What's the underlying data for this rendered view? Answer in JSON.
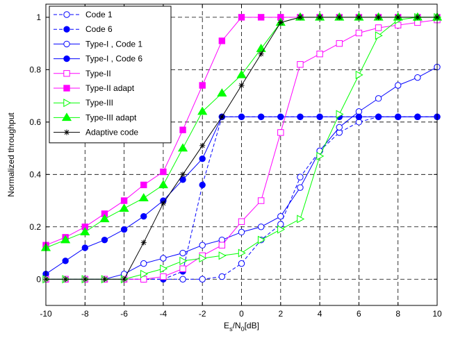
{
  "chart_data": {
    "type": "line",
    "xlabel": "E",
    "xlabel_sub": "s",
    "xlabel_mid": "/N",
    "xlabel_sub2": "0",
    "xlabel_end": "[dB]",
    "ylabel": "Normalized throughput",
    "xlim": [
      -10,
      10
    ],
    "ylim": [
      -0.1,
      1.05
    ],
    "x_ticks": [
      -10,
      -8,
      -6,
      -4,
      -2,
      0,
      2,
      4,
      6,
      8,
      10
    ],
    "y_ticks": [
      0,
      0.2,
      0.4,
      0.6,
      0.8,
      1
    ],
    "grid": true,
    "legend_position": "top-left",
    "series": [
      {
        "name": "Code 1",
        "color": "#0000ff",
        "marker": "circle-open",
        "dash": "dashed",
        "x": [
          -10,
          -9,
          -8,
          -7,
          -6,
          -5,
          -4,
          -3,
          -2,
          -1,
          0,
          1,
          2,
          3,
          4,
          5,
          6,
          7,
          8,
          9,
          10
        ],
        "y": [
          0,
          0,
          0,
          0,
          0,
          0,
          0,
          0,
          0,
          0.01,
          0.06,
          0.15,
          0.21,
          0.39,
          0.49,
          0.56,
          0.6,
          0.62,
          0.62,
          0.62,
          0.62
        ]
      },
      {
        "name": "Code 6",
        "color": "#0000ff",
        "marker": "circle-filled",
        "dash": "dashed",
        "x": [
          -10,
          -9,
          -8,
          -7,
          -6,
          -5,
          -4,
          -3,
          -2,
          -1,
          0,
          1,
          2,
          3,
          4,
          5,
          6,
          7,
          8,
          9,
          10
        ],
        "y": [
          0,
          0,
          0,
          0,
          0,
          0,
          0,
          0.03,
          0.36,
          0.62,
          0.62,
          0.62,
          0.62,
          0.62,
          0.62,
          0.62,
          0.62,
          0.62,
          0.62,
          0.62,
          0.62
        ]
      },
      {
        "name": "Type-I , Code 1",
        "color": "#0000ff",
        "marker": "circle-open",
        "dash": "solid",
        "x": [
          -10,
          -9,
          -8,
          -7,
          -6,
          -5,
          -4,
          -3,
          -2,
          -1,
          0,
          1,
          2,
          3,
          4,
          5,
          6,
          7,
          8,
          9,
          10
        ],
        "y": [
          0,
          0,
          0,
          0,
          0.02,
          0.06,
          0.08,
          0.1,
          0.13,
          0.15,
          0.18,
          0.2,
          0.24,
          0.35,
          0.49,
          0.58,
          0.64,
          0.69,
          0.74,
          0.77,
          0.81
        ]
      },
      {
        "name": "Type-I , Code 6",
        "color": "#0000ff",
        "marker": "circle-filled",
        "dash": "solid",
        "x": [
          -10,
          -9,
          -8,
          -7,
          -6,
          -5,
          -4,
          -3,
          -2,
          -1,
          0,
          1,
          2,
          3,
          4,
          5,
          6,
          7,
          8,
          9,
          10
        ],
        "y": [
          0.02,
          0.07,
          0.12,
          0.15,
          0.19,
          0.24,
          0.3,
          0.38,
          0.46,
          0.62,
          0.62,
          0.62,
          0.62,
          0.62,
          0.62,
          0.62,
          0.62,
          0.62,
          0.62,
          0.62,
          0.62
        ]
      },
      {
        "name": "Type-II",
        "color": "#ff00ff",
        "marker": "square-open",
        "dash": "solid",
        "x": [
          -10,
          -9,
          -8,
          -7,
          -6,
          -5,
          -4,
          -3,
          -2,
          -1,
          0,
          1,
          2,
          3,
          4,
          5,
          6,
          7,
          8,
          9,
          10
        ],
        "y": [
          0,
          0,
          0,
          0,
          0,
          0,
          0.01,
          0.04,
          0.09,
          0.13,
          0.22,
          0.3,
          0.56,
          0.82,
          0.86,
          0.9,
          0.94,
          0.96,
          0.97,
          0.98,
          0.99
        ]
      },
      {
        "name": "Type-II  adapt",
        "color": "#ff00ff",
        "marker": "square-filled",
        "dash": "solid",
        "x": [
          -10,
          -9,
          -8,
          -7,
          -6,
          -5,
          -4,
          -3,
          -2,
          -1,
          0,
          1,
          2,
          3,
          4,
          5,
          6,
          7,
          8,
          9,
          10
        ],
        "y": [
          0.13,
          0.16,
          0.2,
          0.25,
          0.3,
          0.36,
          0.41,
          0.57,
          0.74,
          0.91,
          1,
          1,
          1,
          1,
          1,
          1,
          1,
          1,
          1,
          1,
          1
        ]
      },
      {
        "name": "Type-III",
        "color": "#00ff00",
        "marker": "triangle-right-open",
        "dash": "solid",
        "x": [
          -10,
          -9,
          -8,
          -7,
          -6,
          -5,
          -4,
          -3,
          -2,
          -1,
          0,
          1,
          2,
          3,
          4,
          5,
          6,
          7,
          8,
          9,
          10
        ],
        "y": [
          0,
          0,
          0,
          0,
          0,
          0.02,
          0.04,
          0.07,
          0.08,
          0.09,
          0.1,
          0.15,
          0.19,
          0.23,
          0.47,
          0.63,
          0.78,
          0.93,
          0.99,
          1,
          1
        ]
      },
      {
        "name": "Type-III  adapt",
        "color": "#00ff00",
        "marker": "triangle-up-filled",
        "dash": "solid",
        "x": [
          -10,
          -9,
          -8,
          -7,
          -6,
          -5,
          -4,
          -3,
          -2,
          -1,
          0,
          1,
          2,
          3,
          4,
          5,
          6,
          7,
          8,
          9,
          10
        ],
        "y": [
          0.12,
          0.15,
          0.18,
          0.23,
          0.27,
          0.31,
          0.36,
          0.5,
          0.64,
          0.71,
          0.78,
          0.88,
          0.98,
          1,
          1,
          1,
          1,
          1,
          1,
          1,
          1
        ]
      },
      {
        "name": "Adaptive code",
        "color": "#000000",
        "marker": "asterisk",
        "dash": "solid",
        "x": [
          -10,
          -9,
          -8,
          -7,
          -6,
          -5,
          -4,
          -3,
          -2,
          -1,
          0,
          1,
          2,
          3,
          4,
          5,
          6,
          7,
          8,
          9,
          10
        ],
        "y": [
          0,
          0,
          0,
          0,
          0,
          0.14,
          0.29,
          0.4,
          0.51,
          0.62,
          0.74,
          0.86,
          0.98,
          1,
          1,
          1,
          1,
          1,
          1,
          1,
          1
        ]
      }
    ]
  }
}
